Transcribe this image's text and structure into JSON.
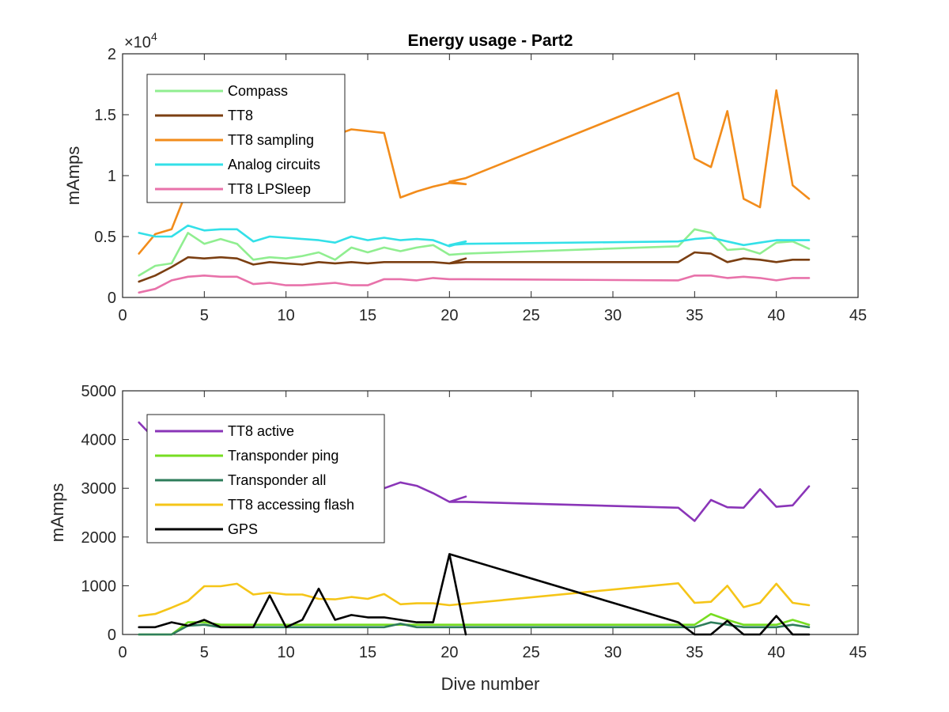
{
  "figure": {
    "title": "Energy usage - Part2",
    "xlabel": "Dive number"
  },
  "chart_data": [
    {
      "type": "line",
      "title": "Energy usage - Part2",
      "xlabel": "",
      "ylabel": "mAmps",
      "y_exponent_label": "×10",
      "y_exponent_power": "4",
      "xlim": [
        0,
        45
      ],
      "ylim": [
        0,
        20000
      ],
      "xticks": [
        "0",
        "5",
        "10",
        "15",
        "20",
        "25",
        "30",
        "35",
        "40",
        "45"
      ],
      "yticks": [
        "0",
        "0.5",
        "1",
        "1.5",
        "2"
      ],
      "xtick_values": [
        0,
        5,
        10,
        15,
        20,
        25,
        30,
        35,
        40,
        45
      ],
      "ytick_values": [
        0,
        5000,
        10000,
        15000,
        20000
      ],
      "grid": false,
      "legend_position": "top-left",
      "series": [
        {
          "name": "Compass",
          "color": "#90ee90",
          "x": [
            1,
            2,
            3,
            4,
            5,
            6,
            7,
            8,
            9,
            10,
            11,
            12,
            13,
            14,
            15,
            16,
            17,
            18,
            19,
            20,
            21,
            20,
            21,
            34,
            35,
            36,
            37,
            38,
            39,
            40,
            41,
            42
          ],
          "y": [
            1800,
            2600,
            2800,
            5300,
            4400,
            4800,
            4400,
            3100,
            3300,
            3200,
            3400,
            3700,
            3100,
            4100,
            3700,
            4100,
            3800,
            4100,
            4300,
            3500,
            3600,
            3500,
            3600,
            4200,
            5600,
            5300,
            3900,
            4000,
            3600,
            4500,
            4600,
            4000
          ]
        },
        {
          "name": "TT8",
          "color": "#7b3f12",
          "x": [
            1,
            2,
            3,
            4,
            5,
            6,
            7,
            8,
            9,
            10,
            11,
            12,
            13,
            14,
            15,
            16,
            17,
            18,
            19,
            20,
            21,
            20,
            21,
            34,
            35,
            36,
            37,
            38,
            39,
            40,
            41,
            42
          ],
          "y": [
            1300,
            1800,
            2500,
            3300,
            3200,
            3300,
            3200,
            2700,
            2900,
            2800,
            2700,
            2900,
            2800,
            2900,
            2800,
            2900,
            2900,
            2900,
            2900,
            2800,
            3200,
            2800,
            2900,
            2900,
            3700,
            3600,
            2900,
            3200,
            3100,
            2900,
            3100,
            3100
          ]
        },
        {
          "name": "TT8 sampling",
          "color": "#f28c1b",
          "x": [
            1,
            2,
            3,
            4,
            14,
            16,
            17,
            18,
            19,
            20,
            21,
            20,
            21,
            34,
            35,
            36,
            37,
            38,
            39,
            40,
            41,
            42
          ],
          "y": [
            3600,
            5200,
            5600,
            9000,
            13800,
            13500,
            8200,
            8700,
            9100,
            9400,
            9300,
            9500,
            9800,
            16800,
            11400,
            10700,
            15300,
            8100,
            7400,
            17000,
            9200,
            8100
          ]
        },
        {
          "name": "Analog circuits",
          "color": "#33e0e8",
          "x": [
            1,
            2,
            3,
            4,
            5,
            6,
            7,
            8,
            9,
            10,
            11,
            12,
            13,
            14,
            15,
            16,
            17,
            18,
            19,
            20,
            21,
            20,
            21,
            34,
            35,
            36,
            37,
            38,
            39,
            40,
            41,
            42
          ],
          "y": [
            5300,
            5000,
            5000,
            5900,
            5500,
            5600,
            5600,
            4600,
            5000,
            4900,
            4800,
            4700,
            4500,
            5000,
            4700,
            4900,
            4700,
            4800,
            4700,
            4200,
            4600,
            4300,
            4400,
            4600,
            4800,
            4900,
            4600,
            4300,
            4500,
            4700,
            4700,
            4700
          ]
        },
        {
          "name": "TT8 LPSleep",
          "color": "#e872aa",
          "x": [
            1,
            2,
            3,
            4,
            5,
            6,
            7,
            8,
            9,
            10,
            11,
            12,
            13,
            14,
            15,
            16,
            17,
            18,
            19,
            20,
            21,
            34,
            35,
            36,
            37,
            38,
            39,
            40,
            41,
            42
          ],
          "y": [
            400,
            700,
            1400,
            1700,
            1800,
            1700,
            1700,
            1100,
            1200,
            1000,
            1000,
            1100,
            1200,
            1000,
            1000,
            1500,
            1500,
            1400,
            1600,
            1500,
            1500,
            1400,
            1800,
            1800,
            1600,
            1700,
            1600,
            1400,
            1600,
            1600
          ]
        }
      ]
    },
    {
      "type": "line",
      "title": "",
      "xlabel": "Dive number",
      "ylabel": "mAmps",
      "xlim": [
        0,
        45
      ],
      "ylim": [
        0,
        5000
      ],
      "xticks": [
        "0",
        "5",
        "10",
        "15",
        "20",
        "25",
        "30",
        "35",
        "40",
        "45"
      ],
      "yticks": [
        "0",
        "1000",
        "2000",
        "3000",
        "4000",
        "5000"
      ],
      "xtick_values": [
        0,
        5,
        10,
        15,
        20,
        25,
        30,
        35,
        40,
        45
      ],
      "ytick_values": [
        0,
        1000,
        2000,
        3000,
        4000,
        5000
      ],
      "grid": false,
      "legend_position": "top-left",
      "series": [
        {
          "name": "TT8 active",
          "color": "#8a35b8",
          "x": [
            1,
            2,
            15,
            16,
            17,
            18,
            19,
            20,
            21,
            20,
            21,
            34,
            35,
            36,
            37,
            38,
            39,
            40,
            41,
            42
          ],
          "y": [
            4350,
            4000,
            3000,
            3000,
            3120,
            3050,
            2900,
            2720,
            2830,
            2720,
            2720,
            2600,
            2330,
            2760,
            2610,
            2600,
            2980,
            2620,
            2650,
            3040
          ]
        },
        {
          "name": "Transponder ping",
          "color": "#77dd22",
          "x": [
            1,
            2,
            3,
            4,
            5,
            6,
            7,
            8,
            16,
            17,
            18,
            19,
            20,
            21,
            34,
            35,
            36,
            37,
            38,
            39,
            40,
            41,
            42
          ],
          "y": [
            0,
            0,
            0,
            250,
            250,
            200,
            200,
            200,
            200,
            200,
            200,
            200,
            200,
            200,
            200,
            200,
            420,
            300,
            200,
            200,
            200,
            300,
            200
          ]
        },
        {
          "name": "Transponder all",
          "color": "#2e7d5b",
          "x": [
            1,
            2,
            3,
            4,
            5,
            6,
            7,
            8,
            16,
            17,
            18,
            19,
            20,
            21,
            34,
            35,
            36,
            37,
            38,
            39,
            40,
            41,
            42
          ],
          "y": [
            0,
            0,
            0,
            180,
            200,
            150,
            150,
            150,
            150,
            220,
            150,
            150,
            150,
            150,
            150,
            150,
            250,
            200,
            150,
            150,
            150,
            200,
            150
          ]
        },
        {
          "name": "TT8 accessing flash",
          "color": "#f5c518",
          "x": [
            1,
            2,
            3,
            4,
            5,
            6,
            7,
            8,
            9,
            10,
            11,
            12,
            13,
            14,
            15,
            16,
            17,
            18,
            19,
            20,
            34,
            35,
            36,
            37,
            38,
            39,
            40,
            41,
            42
          ],
          "y": [
            380,
            420,
            550,
            690,
            990,
            990,
            1040,
            820,
            860,
            820,
            820,
            730,
            720,
            770,
            730,
            830,
            620,
            640,
            640,
            600,
            1050,
            650,
            670,
            1000,
            560,
            650,
            1040,
            650,
            600
          ]
        },
        {
          "name": "GPS",
          "color": "#000000",
          "x": [
            1,
            2,
            3,
            4,
            5,
            6,
            7,
            8,
            9,
            10,
            11,
            12,
            13,
            14,
            15,
            16,
            17,
            18,
            19,
            20,
            21,
            20,
            34,
            35,
            36,
            37,
            38,
            39,
            40,
            41,
            42
          ],
          "y": [
            150,
            150,
            250,
            180,
            300,
            150,
            150,
            150,
            800,
            150,
            300,
            940,
            300,
            400,
            350,
            350,
            300,
            250,
            250,
            1650,
            0,
            1650,
            250,
            0,
            0,
            280,
            0,
            0,
            380,
            0,
            0
          ]
        }
      ]
    }
  ]
}
